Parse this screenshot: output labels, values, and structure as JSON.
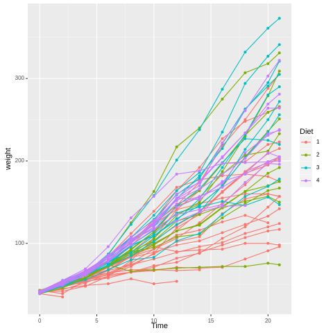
{
  "chart_data": {
    "type": "line",
    "x_label": "Time",
    "y_label": "weight",
    "legend_title": "Diet",
    "x": [
      0,
      2,
      4,
      6,
      8,
      10,
      12,
      14,
      16,
      18,
      20,
      21
    ],
    "xlim": [
      -1.05,
      22.05
    ],
    "xticks": [
      0,
      5,
      10,
      15,
      20
    ],
    "ylim": [
      14,
      391
    ],
    "yticks": [
      100,
      200,
      300
    ],
    "grid": true,
    "legend_position": "right",
    "series": [
      {
        "name": "1",
        "color": "#F8766D",
        "chicks": [
          [
            42,
            51,
            59,
            64,
            76,
            93,
            106,
            125,
            149,
            171,
            199,
            205
          ],
          [
            40,
            49,
            58,
            72,
            84,
            103,
            122,
            138,
            162,
            187,
            209,
            215
          ],
          [
            43,
            39,
            55,
            67,
            84,
            99,
            115,
            138,
            163,
            187,
            198,
            202
          ],
          [
            42,
            49,
            56,
            67,
            74,
            87,
            102,
            108,
            136,
            154,
            160,
            157
          ],
          [
            41,
            42,
            48,
            60,
            79,
            106,
            141,
            164,
            197,
            199,
            220,
            223
          ],
          [
            41,
            49,
            59,
            74,
            97,
            124,
            141,
            148,
            155,
            160,
            160,
            157
          ],
          [
            41,
            49,
            57,
            71,
            89,
            112,
            146,
            174,
            218,
            250,
            288,
            305
          ],
          [
            42,
            50,
            61,
            71,
            84,
            93,
            110,
            116,
            126,
            134,
            125,
            null
          ],
          [
            42,
            51,
            59,
            68,
            85,
            96,
            90,
            92,
            93,
            100,
            100,
            98
          ],
          [
            41,
            44,
            52,
            63,
            74,
            81,
            89,
            96,
            101,
            112,
            120,
            124
          ],
          [
            43,
            51,
            63,
            84,
            112,
            139,
            168,
            177,
            182,
            184,
            181,
            175
          ],
          [
            41,
            49,
            56,
            62,
            72,
            88,
            119,
            135,
            162,
            185,
            195,
            205
          ],
          [
            41,
            48,
            53,
            60,
            65,
            67,
            71,
            70,
            71,
            81,
            91,
            96
          ],
          [
            41,
            49,
            62,
            79,
            101,
            128,
            164,
            192,
            227,
            248,
            259,
            266
          ],
          [
            41,
            49,
            56,
            64,
            68,
            68,
            67,
            68,
            null,
            null,
            null,
            null
          ],
          [
            41,
            45,
            49,
            51,
            57,
            51,
            54,
            null,
            null,
            null,
            null,
            null
          ],
          [
            42,
            51,
            61,
            72,
            83,
            89,
            98,
            103,
            113,
            123,
            133,
            142
          ],
          [
            39,
            35,
            null,
            null,
            null,
            null,
            null,
            null,
            null,
            null,
            null,
            null
          ],
          [
            43,
            48,
            55,
            62,
            65,
            71,
            82,
            88,
            106,
            120,
            144,
            157
          ],
          [
            41,
            47,
            54,
            58,
            65,
            73,
            77,
            89,
            98,
            107,
            115,
            117
          ]
        ]
      },
      {
        "name": "2",
        "color": "#7CAE00",
        "chicks": [
          [
            40,
            50,
            62,
            86,
            125,
            163,
            217,
            240,
            275,
            307,
            318,
            331
          ],
          [
            41,
            55,
            64,
            77,
            90,
            95,
            108,
            111,
            131,
            148,
            164,
            167
          ],
          [
            43,
            52,
            61,
            73,
            90,
            103,
            127,
            135,
            145,
            163,
            170,
            175
          ],
          [
            42,
            52,
            58,
            74,
            66,
            68,
            70,
            71,
            72,
            72,
            76,
            74
          ],
          [
            40,
            49,
            62,
            78,
            102,
            124,
            146,
            164,
            197,
            231,
            259,
            265
          ],
          [
            42,
            48,
            57,
            74,
            93,
            114,
            136,
            147,
            169,
            205,
            236,
            251
          ],
          [
            39,
            46,
            58,
            73,
            87,
            100,
            115,
            123,
            144,
            163,
            185,
            192
          ],
          [
            39,
            46,
            58,
            73,
            92,
            114,
            145,
            156,
            184,
            207,
            212,
            233
          ],
          [
            39,
            48,
            59,
            74,
            87,
            106,
            134,
            150,
            187,
            230,
            279,
            309
          ],
          [
            42,
            48,
            59,
            72,
            85,
            98,
            115,
            122,
            143,
            151,
            157,
            150
          ]
        ]
      },
      {
        "name": "3",
        "color": "#00BFC4",
        "chicks": [
          [
            42,
            53,
            62,
            73,
            85,
            102,
            123,
            138,
            170,
            204,
            235,
            256
          ],
          [
            41,
            49,
            65,
            82,
            107,
            129,
            159,
            179,
            221,
            263,
            291,
            305
          ],
          [
            39,
            50,
            63,
            77,
            96,
            111,
            137,
            144,
            151,
            146,
            156,
            147
          ],
          [
            41,
            49,
            63,
            85,
            107,
            134,
            164,
            186,
            235,
            294,
            327,
            341
          ],
          [
            41,
            53,
            64,
            87,
            123,
            158,
            201,
            238,
            287,
            332,
            361,
            373
          ],
          [
            39,
            48,
            61,
            76,
            98,
            116,
            145,
            166,
            198,
            227,
            225,
            220
          ],
          [
            41,
            48,
            56,
            68,
            80,
            83,
            103,
            112,
            135,
            157,
            169,
            178
          ],
          [
            41,
            49,
            61,
            74,
            98,
            109,
            128,
            154,
            192,
            232,
            280,
            290
          ],
          [
            42,
            50,
            61,
            78,
            89,
            109,
            130,
            146,
            170,
            214,
            250,
            272
          ],
          [
            41,
            55,
            66,
            79,
            101,
            120,
            154,
            182,
            215,
            262,
            295,
            321
          ]
        ]
      },
      {
        "name": "4",
        "color": "#C77CFF",
        "chicks": [
          [
            42,
            51,
            66,
            85,
            103,
            124,
            155,
            153,
            175,
            184,
            199,
            204
          ],
          [
            42,
            49,
            63,
            84,
            103,
            126,
            160,
            174,
            204,
            234,
            269,
            281
          ],
          [
            42,
            55,
            69,
            96,
            131,
            157,
            184,
            188,
            197,
            198,
            199,
            200
          ],
          [
            42,
            51,
            65,
            86,
            103,
            118,
            127,
            138,
            145,
            146,
            null,
            null
          ],
          [
            41,
            50,
            61,
            78,
            98,
            117,
            135,
            141,
            147,
            174,
            197,
            196
          ],
          [
            40,
            52,
            62,
            82,
            101,
            120,
            144,
            156,
            173,
            210,
            231,
            238
          ],
          [
            41,
            53,
            66,
            79,
            100,
            123,
            148,
            157,
            168,
            185,
            210,
            205
          ],
          [
            39,
            50,
            62,
            80,
            104,
            125,
            154,
            170,
            222,
            261,
            303,
            322
          ],
          [
            40,
            53,
            64,
            85,
            108,
            128,
            152,
            166,
            184,
            203,
            233,
            237
          ],
          [
            41,
            54,
            67,
            84,
            105,
            122,
            155,
            175,
            205,
            234,
            264,
            264
          ]
        ]
      }
    ]
  }
}
